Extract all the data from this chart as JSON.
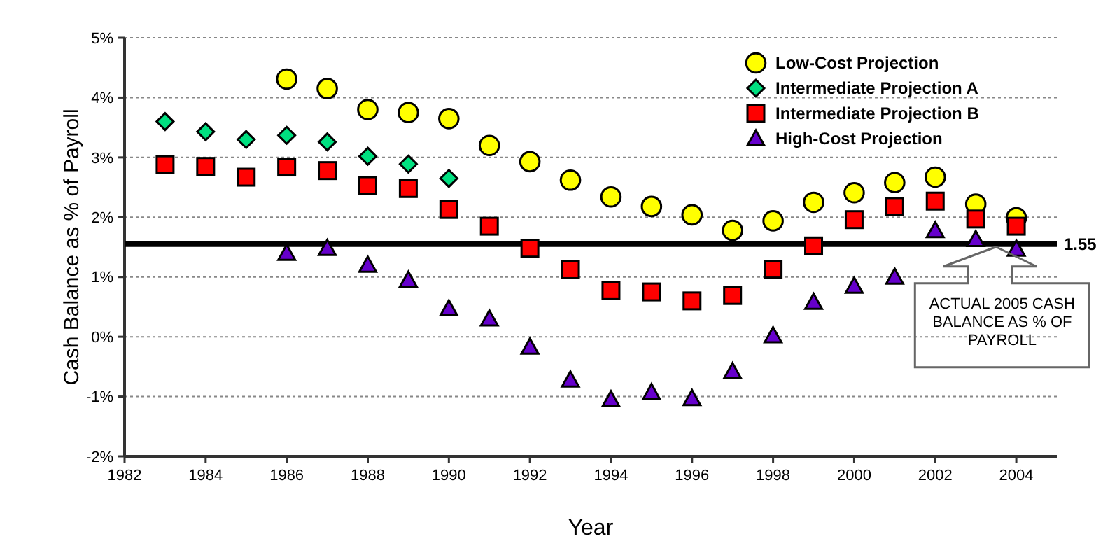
{
  "chart_data": {
    "type": "scatter",
    "xlabel": "Year",
    "ylabel": "Cash Balance as % of Payroll",
    "xlim": [
      1982,
      2005
    ],
    "xticks": [
      1982,
      1984,
      1986,
      1988,
      1990,
      1992,
      1994,
      1996,
      1998,
      2000,
      2002,
      2004
    ],
    "ylim": [
      -2,
      5
    ],
    "yticks": [
      {
        "value": -2,
        "label": "-2%"
      },
      {
        "value": -1,
        "label": "-1%"
      },
      {
        "value": 0,
        "label": "0%"
      },
      {
        "value": 1,
        "label": "1%"
      },
      {
        "value": 2,
        "label": "2%"
      },
      {
        "value": 3,
        "label": "3%"
      },
      {
        "value": 4,
        "label": "4%"
      },
      {
        "value": 5,
        "label": "5%"
      }
    ],
    "grid": "y",
    "legend": "top right",
    "series": [
      {
        "name": "Low-Cost Projection",
        "color": "#ffff00",
        "marker": "circle",
        "x": [
          1986,
          1987,
          1988,
          1989,
          1990,
          1991,
          1992,
          1993,
          1994,
          1995,
          1996,
          1997,
          1998,
          1999,
          2000,
          2001,
          2002,
          2003,
          2004
        ],
        "values": [
          4.31,
          4.15,
          3.8,
          3.75,
          3.65,
          3.2,
          2.93,
          2.62,
          2.34,
          2.18,
          2.04,
          1.78,
          1.94,
          2.25,
          2.41,
          2.58,
          2.67,
          2.22,
          1.99
        ]
      },
      {
        "name": "Intermediate Projection A",
        "color": "#00e080",
        "marker": "diamond",
        "x": [
          1983,
          1984,
          1985,
          1986,
          1987,
          1988,
          1989,
          1990
        ],
        "values": [
          3.6,
          3.43,
          3.3,
          3.37,
          3.26,
          3.02,
          2.89,
          2.65
        ]
      },
      {
        "name": "Intermediate Projection B",
        "color": "#ff0000",
        "marker": "square",
        "x": [
          1983,
          1984,
          1985,
          1986,
          1987,
          1988,
          1989,
          1990,
          1991,
          1992,
          1993,
          1994,
          1995,
          1996,
          1997,
          1998,
          1999,
          2000,
          2001,
          2002,
          2003,
          2004
        ],
        "values": [
          2.88,
          2.85,
          2.67,
          2.84,
          2.78,
          2.53,
          2.48,
          2.13,
          1.85,
          1.48,
          1.12,
          0.77,
          0.75,
          0.6,
          0.69,
          1.13,
          1.52,
          1.96,
          2.18,
          2.27,
          1.97,
          1.85
        ]
      },
      {
        "name": "High-Cost Projection",
        "color": "#6600cc",
        "marker": "triangle",
        "x": [
          1986,
          1987,
          1988,
          1989,
          1990,
          1991,
          1992,
          1993,
          1994,
          1995,
          1996,
          1997,
          1998,
          1999,
          2000,
          2001,
          2002,
          2003,
          2004
        ],
        "values": [
          1.4,
          1.48,
          1.2,
          0.95,
          0.47,
          0.3,
          -0.17,
          -0.72,
          -1.05,
          -0.93,
          -1.03,
          -0.58,
          0.02,
          0.58,
          0.85,
          1.0,
          1.78,
          1.63,
          1.47
        ]
      }
    ],
    "ref_lines": [
      {
        "axis": "y",
        "value": 1.55,
        "label": "1.55",
        "color": "#000000"
      }
    ],
    "annotations": [
      "ACTUAL 2005 CASH BALANCE AS % OF PAYROLL"
    ]
  }
}
